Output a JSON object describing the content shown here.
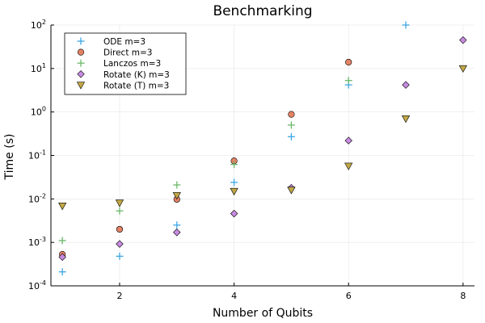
{
  "chart_data": {
    "type": "scatter",
    "title": "Benchmarking",
    "xlabel": "Number of Qubits",
    "ylabel": "Time (s)",
    "x_scale": "linear",
    "y_scale": "log",
    "xlim": [
      0.8,
      8.2
    ],
    "ylim": [
      0.0001,
      100
    ],
    "x_ticks": [
      2,
      4,
      6,
      8
    ],
    "y_ticks": [
      {
        "value": 0.0001,
        "base": "10",
        "exp": "-4"
      },
      {
        "value": 0.001,
        "base": "10",
        "exp": "-3"
      },
      {
        "value": 0.01,
        "base": "10",
        "exp": "-2"
      },
      {
        "value": 0.1,
        "base": "10",
        "exp": "-1"
      },
      {
        "value": 1,
        "base": "10",
        "exp": "0"
      },
      {
        "value": 10,
        "base": "10",
        "exp": "1"
      },
      {
        "value": 100,
        "base": "10",
        "exp": "2"
      }
    ],
    "grid": true,
    "legend_position": "top-left",
    "series": [
      {
        "name": "ODE m=3",
        "marker": "cross",
        "color": "#3da6e3",
        "x": [
          1,
          2,
          3,
          4,
          5,
          6,
          7
        ],
        "y": [
          0.00021,
          0.00048,
          0.0025,
          0.024,
          0.27,
          4.2,
          100
        ]
      },
      {
        "name": "Direct m=3",
        "marker": "circle",
        "color": "#e48265",
        "x": [
          1,
          2,
          3,
          4,
          5,
          6
        ],
        "y": [
          0.00053,
          0.002,
          0.0098,
          0.075,
          0.88,
          14
        ]
      },
      {
        "name": "Lanczos m=3",
        "marker": "cross",
        "color": "#6cb86c",
        "x": [
          1,
          2,
          3,
          4,
          5,
          6
        ],
        "y": [
          0.0011,
          0.0053,
          0.021,
          0.062,
          0.5,
          5.3
        ]
      },
      {
        "name": "Rotate (K) m=3",
        "marker": "diamond",
        "color": "#c68be0",
        "x": [
          1,
          2,
          3,
          4,
          5,
          6,
          7,
          8
        ],
        "y": [
          0.00046,
          0.00092,
          0.0017,
          0.0046,
          0.018,
          0.22,
          4.2,
          45
        ]
      },
      {
        "name": "Rotate (T) m=3",
        "marker": "triangle-down",
        "color": "#c2a846",
        "x": [
          1,
          2,
          3,
          4,
          5,
          6,
          7,
          8
        ],
        "y": [
          0.0069,
          0.0081,
          0.012,
          0.015,
          0.016,
          0.057,
          0.7,
          10
        ]
      }
    ]
  }
}
